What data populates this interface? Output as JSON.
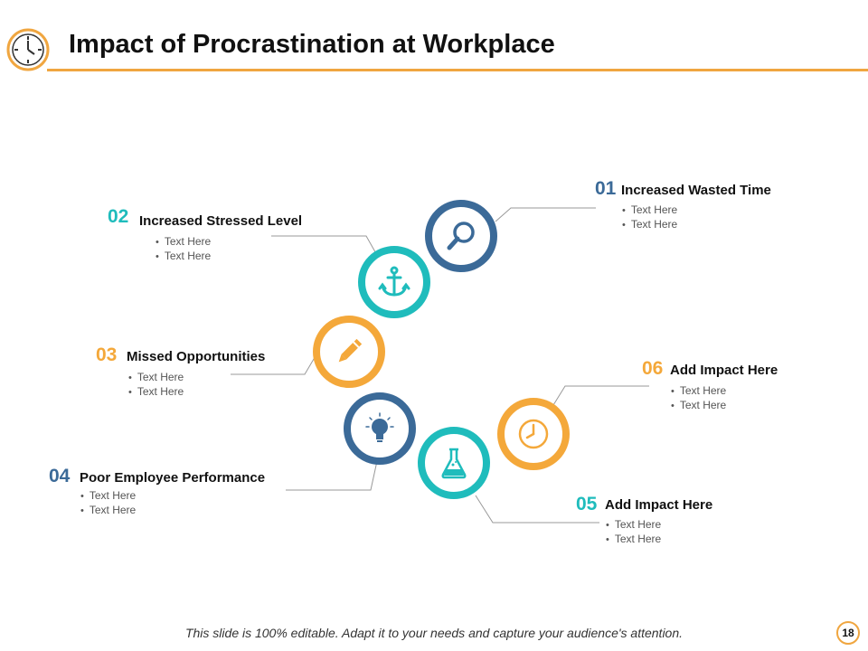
{
  "title": "Impact of Procrastination at Workplace",
  "colors": {
    "accent": "#f0a640",
    "blue": "#3b6a98",
    "teal": "#1fbcbc",
    "orange": "#f4a83a"
  },
  "items": [
    {
      "num": "01",
      "heading": "Increased Wasted Time",
      "bullets": [
        "Text Here",
        "Text Here"
      ],
      "icon": "magnifier-icon",
      "color": "#3b6a98"
    },
    {
      "num": "02",
      "heading": "Increased Stressed Level",
      "bullets": [
        "Text Here",
        "Text Here"
      ],
      "icon": "anchor-icon",
      "color": "#1fbcbc"
    },
    {
      "num": "03",
      "heading": "Missed Opportunities",
      "bullets": [
        "Text Here",
        "Text Here"
      ],
      "icon": "pencil-icon",
      "color": "#f4a83a"
    },
    {
      "num": "04",
      "heading": "Poor Employee Performance",
      "bullets": [
        "Text Here",
        "Text Here"
      ],
      "icon": "lightbulb-icon",
      "color": "#3b6a98"
    },
    {
      "num": "05",
      "heading": "Add Impact Here",
      "bullets": [
        "Text Here",
        "Text Here"
      ],
      "icon": "flask-icon",
      "color": "#1fbcbc"
    },
    {
      "num": "06",
      "heading": "Add Impact Here",
      "bullets": [
        "Text Here",
        "Text Here"
      ],
      "icon": "clock-icon",
      "color": "#f4a83a"
    }
  ],
  "footer": "This slide is 100% editable. Adapt it to your needs and capture your audience's attention.",
  "page_number": "18"
}
